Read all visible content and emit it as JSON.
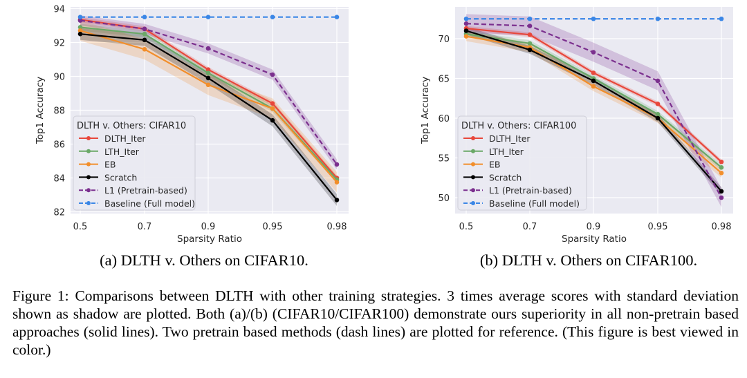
{
  "chart_data": [
    {
      "type": "line",
      "title": "",
      "xlabel": "Sparsity Ratio",
      "ylabel": "Top1 Accuracy",
      "categories": [
        "0.5",
        "0.7",
        "0.9",
        "0.95",
        "0.98"
      ],
      "yticks": [
        82,
        84,
        86,
        88,
        90,
        92,
        94
      ],
      "ylim": [
        81.9,
        94.1
      ],
      "grid": true,
      "legend": {
        "title": "DLTH v. Others: CIFAR10",
        "placement": "lower-left"
      },
      "series": [
        {
          "name": "DLTH_Iter",
          "color": "#e8473b",
          "dashed": false,
          "values": [
            93.35,
            92.8,
            90.4,
            88.4,
            84.0
          ],
          "band": 0.15
        },
        {
          "name": "LTH_Iter",
          "color": "#6aa867",
          "dashed": false,
          "values": [
            92.9,
            92.5,
            90.2,
            88.1,
            83.9
          ],
          "band": 0.2
        },
        {
          "name": "EB",
          "color": "#f28e2b",
          "dashed": false,
          "values": [
            92.7,
            91.6,
            89.5,
            88.1,
            83.75
          ],
          "band": 0.6
        },
        {
          "name": "Scratch",
          "color": "#000000",
          "dashed": false,
          "values": [
            92.5,
            92.15,
            89.9,
            87.4,
            82.7
          ],
          "band": 0.35
        },
        {
          "name": "L1 (Pretrain-based)",
          "color": "#7b2f8e",
          "dashed": true,
          "values": [
            93.3,
            92.8,
            91.65,
            90.1,
            84.8
          ],
          "band": 0.3
        },
        {
          "name": "Baseline (Full model)",
          "color": "#3a86e6",
          "dashed": true,
          "values": [
            93.5,
            93.5,
            93.5,
            93.5,
            93.5
          ],
          "band": 0
        }
      ]
    },
    {
      "type": "line",
      "title": "",
      "xlabel": "Sparsity Ratio",
      "ylabel": "Top1 Accuracy",
      "categories": [
        "0.5",
        "0.7",
        "0.9",
        "0.95",
        "0.98"
      ],
      "yticks": [
        50,
        55,
        60,
        65,
        70
      ],
      "ylim": [
        48.0,
        74.0
      ],
      "grid": true,
      "legend": {
        "title": "DLTH v. Others: CIFAR100",
        "placement": "lower-left"
      },
      "series": [
        {
          "name": "DLTH_Iter",
          "color": "#e8473b",
          "dashed": false,
          "values": [
            71.3,
            70.5,
            65.7,
            61.8,
            54.5
          ],
          "band": 0.3
        },
        {
          "name": "LTH_Iter",
          "color": "#6aa867",
          "dashed": false,
          "values": [
            70.6,
            69.4,
            65.0,
            60.5,
            53.8
          ],
          "band": 0.4
        },
        {
          "name": "EB",
          "color": "#f28e2b",
          "dashed": false,
          "values": [
            70.3,
            68.9,
            64.0,
            60.0,
            53.1
          ],
          "band": 0.6
        },
        {
          "name": "Scratch",
          "color": "#000000",
          "dashed": false,
          "values": [
            71.0,
            68.6,
            64.7,
            60.0,
            50.8
          ],
          "band": 0.5
        },
        {
          "name": "L1 (Pretrain-based)",
          "color": "#7b2f8e",
          "dashed": true,
          "values": [
            71.9,
            71.6,
            68.3,
            64.7,
            50.0
          ],
          "band": 1.2
        },
        {
          "name": "Baseline (Full model)",
          "color": "#3a86e6",
          "dashed": true,
          "values": [
            72.5,
            72.5,
            72.5,
            72.5,
            72.5
          ],
          "band": 0
        }
      ]
    }
  ],
  "subcaptions": [
    "(a) DLTH v. Others on CIFAR10.",
    "(b) DLTH v. Others on CIFAR100."
  ],
  "figure_caption": "Figure 1: Comparisons between DLTH with other training strategies. 3 times average scores with standard deviation shown as shadow are plotted. Both (a)/(b) (CIFAR10/CIFAR100) demonstrate ours superiority in all non-pretrain based approaches (solid lines). Two pretrain based methods (dash lines) are plotted for reference. (This figure is best viewed in color.)"
}
